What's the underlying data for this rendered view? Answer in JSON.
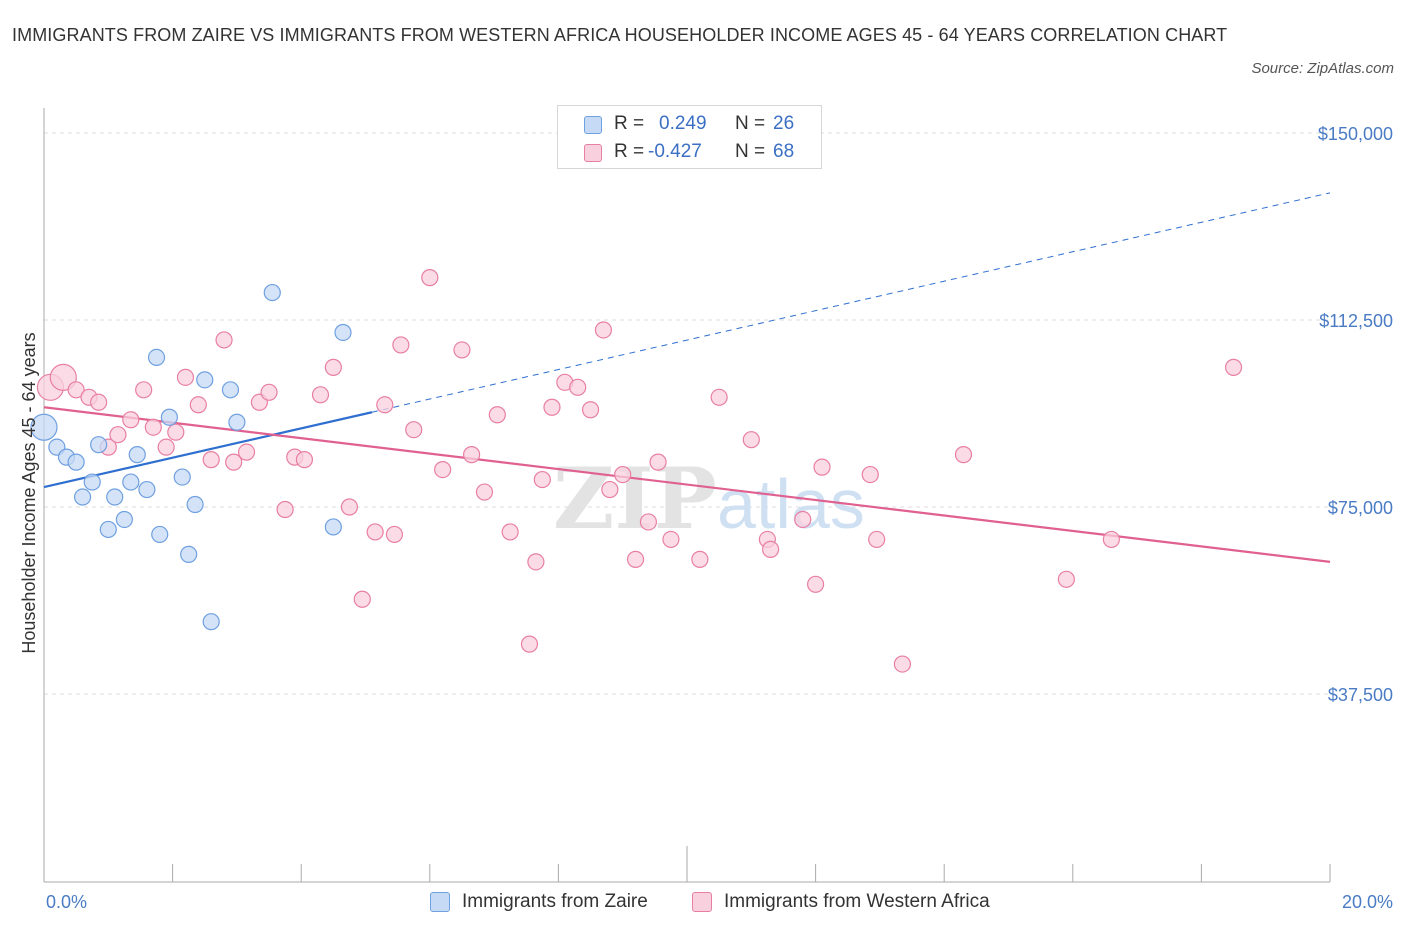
{
  "title": "IMMIGRANTS FROM ZAIRE VS IMMIGRANTS FROM WESTERN AFRICA HOUSEHOLDER INCOME AGES 45 - 64 YEARS CORRELATION CHART",
  "source": "Source: ZipAtlas.com",
  "watermark": {
    "zip": "ZIP",
    "atlas": "atlas"
  },
  "legend": {
    "rows": [
      {
        "r_label": "R =",
        "r_value": "0.249",
        "n_label": "N =",
        "n_value": "26",
        "color": "#a9c8f0"
      },
      {
        "r_label": "R =",
        "r_value": "-0.427",
        "n_label": "N =",
        "n_value": "68",
        "color": "#f7bfd0"
      }
    ]
  },
  "bottom_legend": {
    "items": [
      {
        "label": "Immigrants from Zaire",
        "color": "#a9c8f0"
      },
      {
        "label": "Immigrants from Western Africa",
        "color": "#f7bfd0"
      }
    ]
  },
  "chart_data": {
    "type": "scatter",
    "title": "IMMIGRANTS FROM ZAIRE VS IMMIGRANTS FROM WESTERN AFRICA HOUSEHOLDER INCOME AGES 45 - 64 YEARS CORRELATION CHART",
    "xlabel": "",
    "ylabel": "Householder Income Ages 45 - 64 years",
    "xlim": [
      0,
      20
    ],
    "ylim": [
      0,
      150000
    ],
    "x_tick_labels": [
      "0.0%",
      "20.0%"
    ],
    "y_ticks": [
      37500,
      75000,
      112500,
      150000
    ],
    "y_tick_labels": [
      "$37,500",
      "$75,000",
      "$112,500",
      "$150,000"
    ],
    "grid": true,
    "legend_position": "top-center",
    "colors": {
      "zaire": "#6fa0e0",
      "zaire_fill": "#c6daf5",
      "wafrica": "#e87fa3",
      "wafrica_fill": "#f9d0dd",
      "zaire_line": "#2f6fcf",
      "wafrica_line": "#e0608f"
    },
    "series": [
      {
        "name": "Immigrants from Zaire",
        "r": 0.249,
        "n": 26,
        "points": [
          [
            0.0,
            91000
          ],
          [
            0.2,
            87000
          ],
          [
            0.35,
            85000
          ],
          [
            0.5,
            84000
          ],
          [
            0.6,
            77000
          ],
          [
            0.75,
            80000
          ],
          [
            0.85,
            87500
          ],
          [
            1.0,
            70500
          ],
          [
            1.1,
            77000
          ],
          [
            1.25,
            72500
          ],
          [
            1.35,
            80000
          ],
          [
            1.45,
            85500
          ],
          [
            1.6,
            78500
          ],
          [
            1.75,
            105000
          ],
          [
            1.8,
            69500
          ],
          [
            1.95,
            93000
          ],
          [
            2.15,
            81000
          ],
          [
            2.25,
            65500
          ],
          [
            2.35,
            75500
          ],
          [
            2.5,
            100500
          ],
          [
            2.6,
            52000
          ],
          [
            2.9,
            98500
          ],
          [
            3.0,
            92000
          ],
          [
            3.55,
            118000
          ],
          [
            4.5,
            71000
          ],
          [
            4.65,
            110000
          ]
        ],
        "trend": {
          "x0": 0.0,
          "y0": 79000,
          "x1": 5.1,
          "y1": 94000,
          "dash_x1": 20.0,
          "dash_y1": 138000
        }
      },
      {
        "name": "Immigrants from Western Africa",
        "r": -0.427,
        "n": 68,
        "points": [
          [
            0.1,
            99000
          ],
          [
            0.3,
            101000
          ],
          [
            0.5,
            98500
          ],
          [
            0.7,
            97000
          ],
          [
            0.85,
            96000
          ],
          [
            1.0,
            87000
          ],
          [
            1.15,
            89500
          ],
          [
            1.35,
            92500
          ],
          [
            1.55,
            98500
          ],
          [
            1.7,
            91000
          ],
          [
            1.9,
            87000
          ],
          [
            2.05,
            90000
          ],
          [
            2.2,
            101000
          ],
          [
            2.4,
            95500
          ],
          [
            2.6,
            84500
          ],
          [
            2.8,
            108500
          ],
          [
            2.95,
            84000
          ],
          [
            3.15,
            86000
          ],
          [
            3.35,
            96000
          ],
          [
            3.5,
            98000
          ],
          [
            3.75,
            74500
          ],
          [
            3.9,
            85000
          ],
          [
            4.05,
            84500
          ],
          [
            4.3,
            97500
          ],
          [
            4.5,
            103000
          ],
          [
            4.75,
            75000
          ],
          [
            4.95,
            56500
          ],
          [
            5.15,
            70000
          ],
          [
            5.3,
            95500
          ],
          [
            5.45,
            69500
          ],
          [
            5.55,
            107500
          ],
          [
            5.75,
            90500
          ],
          [
            6.0,
            121000
          ],
          [
            6.2,
            82500
          ],
          [
            6.5,
            106500
          ],
          [
            6.65,
            85500
          ],
          [
            6.85,
            78000
          ],
          [
            7.05,
            93500
          ],
          [
            7.25,
            70000
          ],
          [
            7.55,
            47500
          ],
          [
            7.65,
            64000
          ],
          [
            7.75,
            80500
          ],
          [
            7.9,
            95000
          ],
          [
            8.1,
            100000
          ],
          [
            8.3,
            99000
          ],
          [
            8.5,
            94500
          ],
          [
            8.7,
            110500
          ],
          [
            8.8,
            78500
          ],
          [
            9.0,
            81500
          ],
          [
            9.2,
            64500
          ],
          [
            9.4,
            72000
          ],
          [
            9.55,
            84000
          ],
          [
            9.75,
            68500
          ],
          [
            10.2,
            64500
          ],
          [
            10.5,
            97000
          ],
          [
            11.0,
            88500
          ],
          [
            11.25,
            68500
          ],
          [
            11.3,
            66500
          ],
          [
            11.8,
            72500
          ],
          [
            12.0,
            59500
          ],
          [
            12.1,
            83000
          ],
          [
            12.85,
            81500
          ],
          [
            12.95,
            68500
          ],
          [
            13.35,
            43500
          ],
          [
            14.3,
            85500
          ],
          [
            15.9,
            60500
          ],
          [
            16.6,
            68500
          ],
          [
            18.5,
            103000
          ]
        ],
        "trend": {
          "x0": 0.0,
          "y0": 95000,
          "x1": 20.0,
          "y1": 64000
        }
      }
    ]
  }
}
